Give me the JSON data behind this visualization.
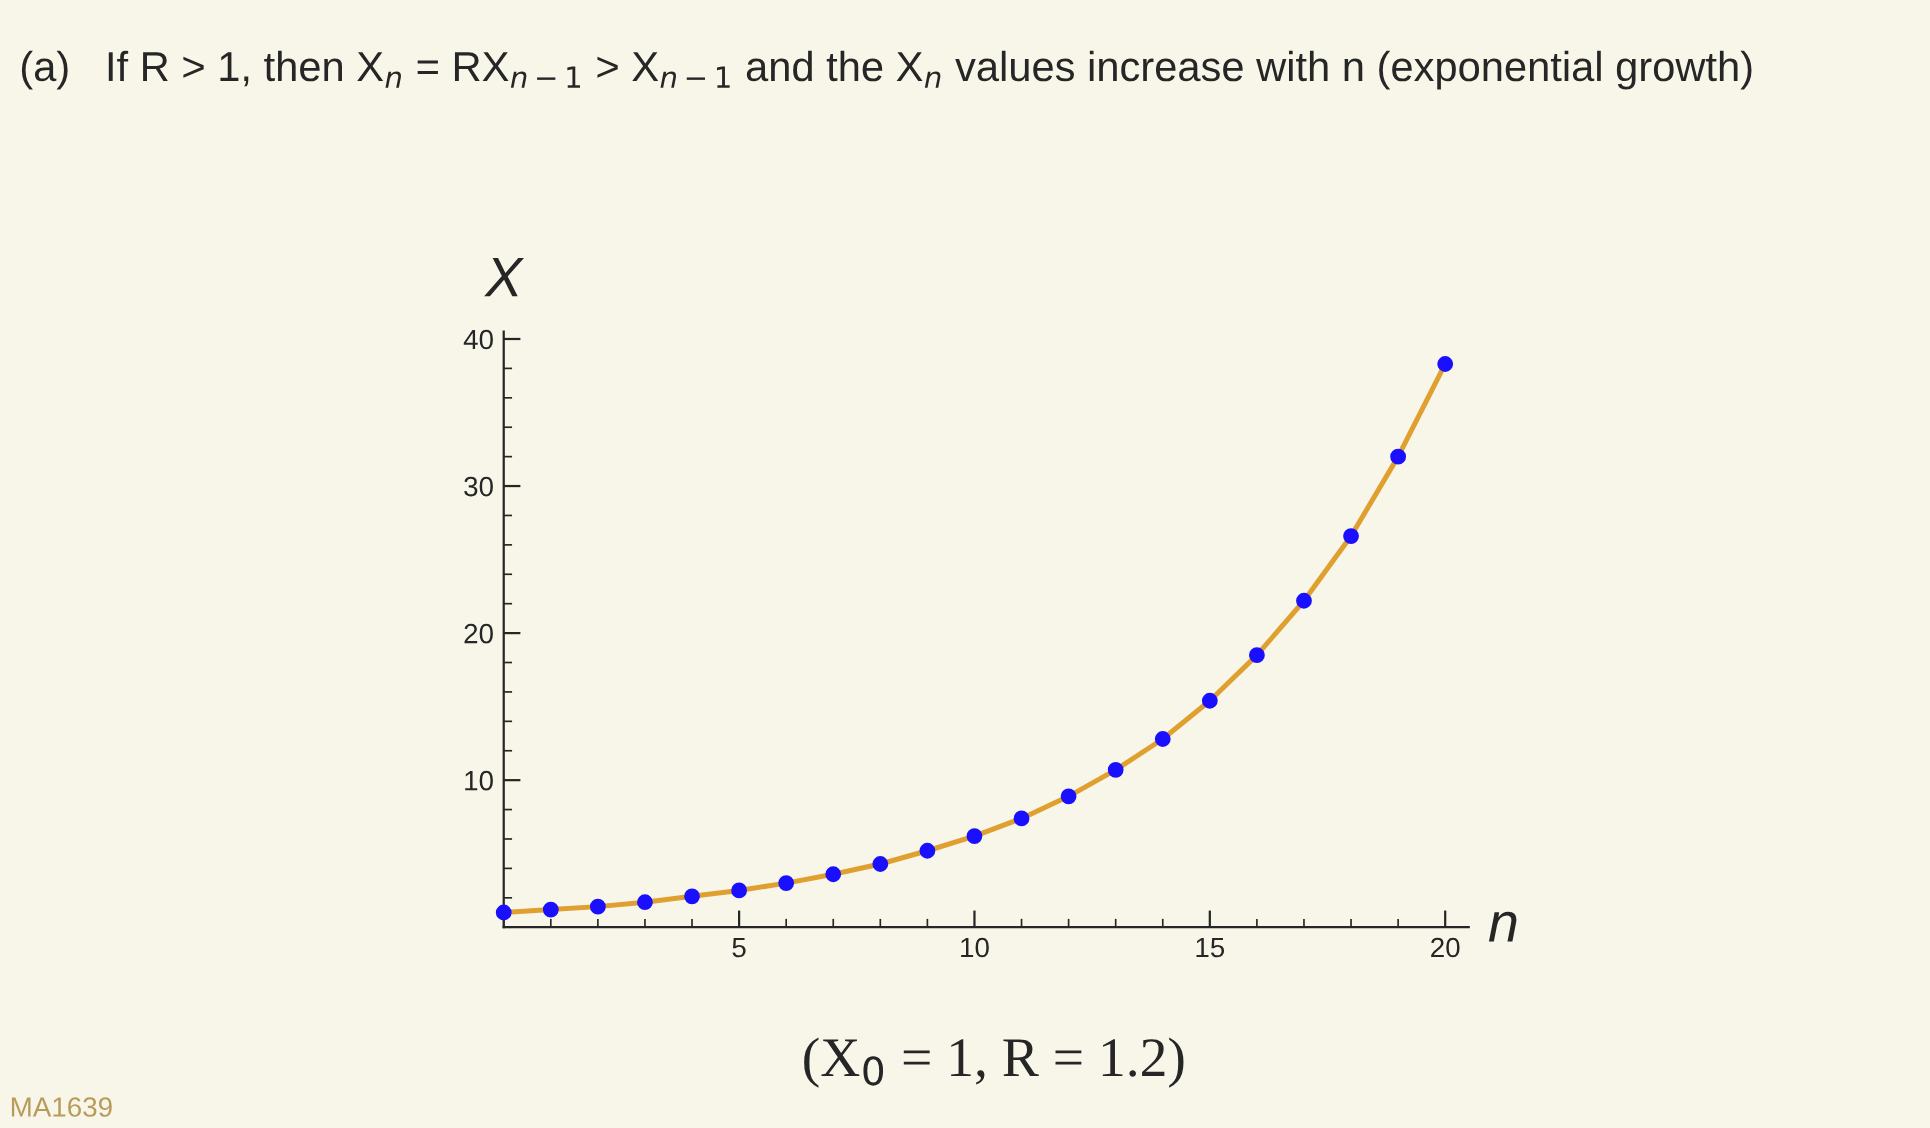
{
  "chart_data": {
    "type": "line",
    "title": "(a)   If R > 1, then X$_{n}$ = RX$_{n−1}$ > X$_{n−1}$ and the X$_{n}$ values increase with n (exponential growth)",
    "xlabel": "n",
    "ylabel": "X",
    "x": [
      0,
      1,
      2,
      3,
      4,
      5,
      6,
      7,
      8,
      9,
      10,
      11,
      12,
      13,
      14,
      15,
      16,
      17,
      18,
      19,
      20
    ],
    "series": [
      {
        "color": "#e0a030",
        "values": [
          1.0,
          1.2,
          1.4,
          1.7,
          2.1,
          2.5,
          3.0,
          3.6,
          4.3,
          5.2,
          6.2,
          7.4,
          8.9,
          10.7,
          12.8,
          15.4,
          18.5,
          22.2,
          26.6,
          32.0,
          38.3
        ]
      },
      {
        "type": "scatter",
        "color": "#1a10ff",
        "marker": "circle",
        "values": [
          1.0,
          1.2,
          1.4,
          1.7,
          2.1,
          2.5,
          3.0,
          3.6,
          4.3,
          5.2,
          6.2,
          7.4,
          8.9,
          10.7,
          12.8,
          15.4,
          18.5,
          22.2,
          26.6,
          32.0,
          38.3
        ]
      }
    ],
    "xlim": [
      0,
      20.5
    ],
    "ylim": [
      0,
      40.5
    ],
    "xticks": [
      5,
      10,
      15,
      20
    ],
    "yticks": [
      10,
      20,
      30,
      40
    ],
    "grid": false,
    "legend": false,
    "annotations": [
      "(X$_{0}$ = 1, R = 1.2)",
      "MA1639"
    ]
  }
}
